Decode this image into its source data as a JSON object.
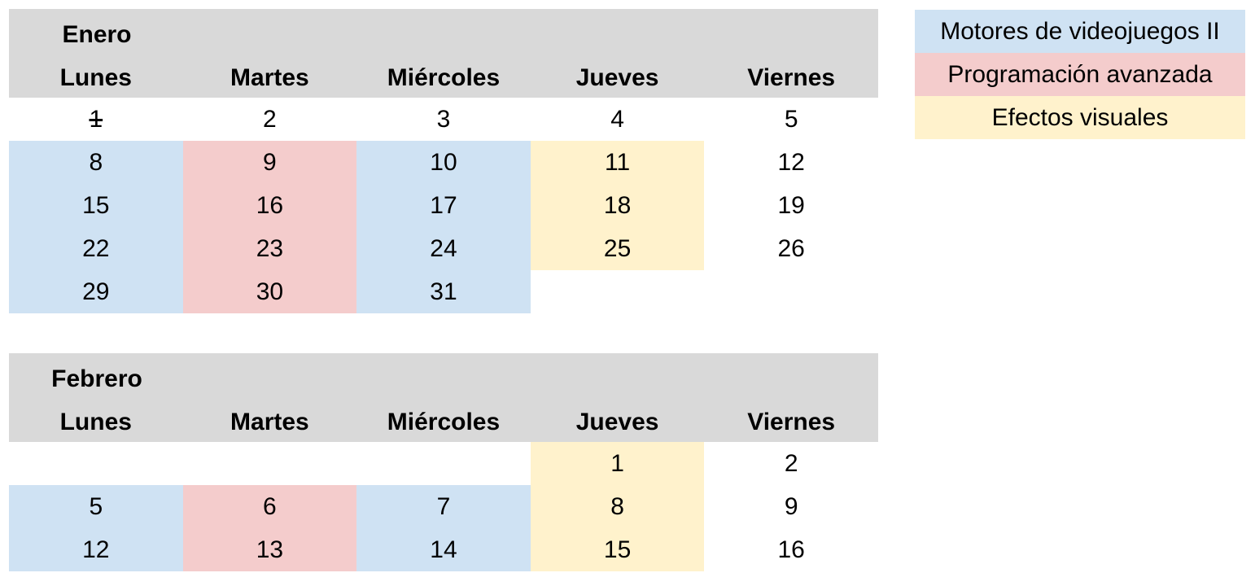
{
  "colors": {
    "header_bg": "#d9d9d9",
    "motores": "#cfe2f3",
    "programacion": "#f4cccc",
    "efectos": "#fff2cc"
  },
  "legend": [
    {
      "label": "Motores de videojuegos II",
      "color": "#cfe2f3"
    },
    {
      "label": "Programación avanzada",
      "color": "#f4cccc"
    },
    {
      "label": "Efectos visuales",
      "color": "#fff2cc"
    }
  ],
  "january": {
    "month": "Enero",
    "days": [
      "Lunes",
      "Martes",
      "Miércoles",
      "Jueves",
      "Viernes"
    ],
    "rows": [
      [
        "1",
        "2",
        "3",
        "4",
        "5"
      ],
      [
        "8",
        "9",
        "10",
        "11",
        "12"
      ],
      [
        "15",
        "16",
        "17",
        "18",
        "19"
      ],
      [
        "22",
        "23",
        "24",
        "25",
        "26"
      ],
      [
        "29",
        "30",
        "31",
        "",
        ""
      ]
    ]
  },
  "february": {
    "month": "Febrero",
    "days": [
      "Lunes",
      "Martes",
      "Miércoles",
      "Jueves",
      "Viernes"
    ],
    "rows": [
      [
        "",
        "",
        "",
        "1",
        "2"
      ],
      [
        "5",
        "6",
        "7",
        "8",
        "9"
      ],
      [
        "12",
        "13",
        "14",
        "15",
        "16"
      ]
    ]
  }
}
